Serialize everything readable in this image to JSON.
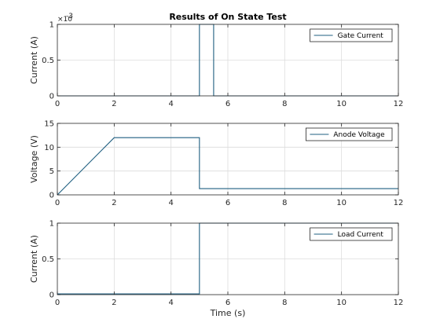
{
  "figure_title": "Results of On State Test",
  "colors": {
    "trace": "#1f5f80",
    "grid": "#dcdcdc",
    "axis": "#262626"
  },
  "chart_data": [
    {
      "type": "line",
      "title": "Results of On State Test",
      "xlabel": "",
      "ylabel": "Current (A)",
      "xlim": [
        0,
        12
      ],
      "ylim": [
        0,
        0.001
      ],
      "x_ticks": [
        0,
        2,
        4,
        6,
        8,
        10,
        12
      ],
      "y_ticks": [
        0,
        0.5,
        1
      ],
      "y_tick_labels": [
        "0",
        "0.5",
        "1"
      ],
      "y_multiplier": "×10^-3",
      "y_multiplier_text": "×10",
      "y_multiplier_exp": "-3",
      "grid": true,
      "legend": {
        "location": "top-right",
        "entries": [
          "Gate Current"
        ]
      },
      "series": [
        {
          "name": "Gate Current",
          "x": [
            0,
            5,
            5,
            5.5,
            5.5,
            12
          ],
          "y": [
            0,
            0,
            0.001,
            0.001,
            0,
            0
          ]
        }
      ]
    },
    {
      "type": "line",
      "title": "",
      "xlabel": "",
      "ylabel": "Voltage (V)",
      "xlim": [
        0,
        12
      ],
      "ylim": [
        0,
        15
      ],
      "x_ticks": [
        0,
        2,
        4,
        6,
        8,
        10,
        12
      ],
      "y_ticks": [
        0,
        5,
        10,
        15
      ],
      "y_tick_labels": [
        "0",
        "5",
        "10",
        "15"
      ],
      "grid": true,
      "legend": {
        "location": "top-right",
        "entries": [
          "Anode Voltage"
        ]
      },
      "series": [
        {
          "name": "Anode Voltage",
          "x": [
            0,
            2,
            5,
            5,
            12
          ],
          "y": [
            0,
            12,
            12,
            1.3,
            1.3
          ]
        }
      ]
    },
    {
      "type": "line",
      "title": "",
      "xlabel": "Time (s)",
      "ylabel": "Current (A)",
      "xlim": [
        0,
        12
      ],
      "ylim": [
        0,
        1
      ],
      "x_ticks": [
        0,
        2,
        4,
        6,
        8,
        10,
        12
      ],
      "y_ticks": [
        0,
        0.5,
        1
      ],
      "y_tick_labels": [
        "0",
        "0.5",
        "1"
      ],
      "grid": true,
      "legend": {
        "location": "top-right",
        "entries": [
          "Load Current"
        ]
      },
      "series": [
        {
          "name": "Load Current",
          "x": [
            0,
            5,
            5,
            12
          ],
          "y": [
            0.01,
            0.01,
            1,
            1
          ]
        }
      ]
    }
  ]
}
